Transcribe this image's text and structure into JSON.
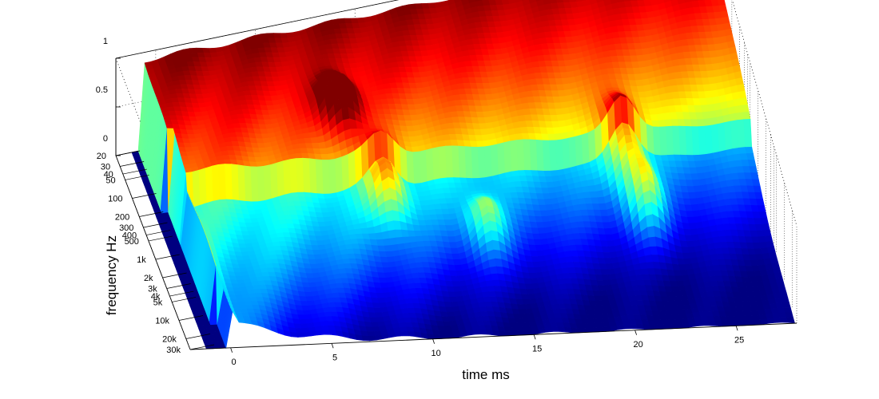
{
  "chart_data": {
    "type": "surface",
    "xlabel": "time   ms",
    "ylabel": "frequency    Hz",
    "zlabel": "",
    "xlim": [
      -2,
      28
    ],
    "ylim": [
      20,
      30000
    ],
    "zlim": [
      0,
      1
    ],
    "y_scale": "log",
    "x_ticks": [
      0,
      5,
      10,
      15,
      20,
      25
    ],
    "x_tick_labels": [
      "0",
      "5",
      "10",
      "15",
      "20",
      "25"
    ],
    "y_ticks": [
      20,
      30,
      40,
      50,
      100,
      200,
      300,
      400,
      500,
      1000,
      2000,
      3000,
      4000,
      5000,
      10000,
      20000,
      30000
    ],
    "y_tick_labels": [
      "20",
      "30",
      "40",
      "50",
      "100",
      "200",
      "300",
      "400",
      "500",
      "1k",
      "2k",
      "3k",
      "4k",
      "5k",
      "10k",
      "20k",
      "30k"
    ],
    "z_ticks": [
      0,
      0.5,
      1
    ],
    "z_tick_labels": [
      "0",
      "0.5",
      "1"
    ],
    "grid": true,
    "colormap": "jet",
    "peaks": [
      {
        "time_ms": 8.0,
        "freq_hz": 200,
        "level": 0.5
      },
      {
        "time_ms": 9.5,
        "freq_hz": 1000,
        "level": 0.4
      },
      {
        "time_ms": 14.0,
        "freq_hz": 2500,
        "level": 0.3
      },
      {
        "time_ms": 21.5,
        "freq_hz": 700,
        "level": 0.4
      },
      {
        "time_ms": 22.0,
        "freq_hz": 2000,
        "level": 0.4
      }
    ]
  }
}
